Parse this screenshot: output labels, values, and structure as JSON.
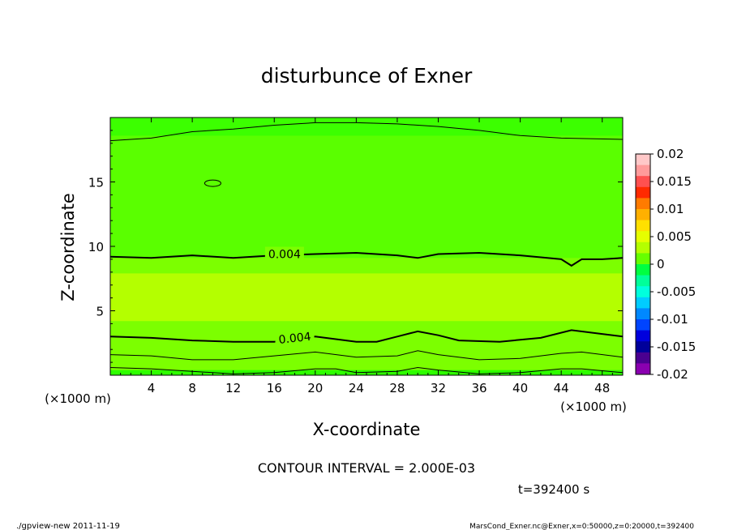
{
  "chart_data": {
    "type": "heatmap",
    "title": "disturbunce of Exner",
    "xlabel": "X-coordinate",
    "ylabel": "Z-coordinate",
    "x_unit_left": "(×1000 m)",
    "x_unit_right": "(×1000 m)",
    "xlim": [
      0,
      50
    ],
    "ylim": [
      0,
      20
    ],
    "x_ticks": [
      4,
      8,
      12,
      16,
      20,
      24,
      28,
      32,
      36,
      40,
      44,
      48
    ],
    "y_ticks": [
      5,
      10,
      15
    ],
    "colorbar": {
      "ticks": [
        "0.02",
        "0.015",
        "0.01",
        "0.005",
        "0",
        "-0.005",
        "-0.01",
        "-0.015",
        "-0.02"
      ],
      "levels": [
        0.02,
        0.015,
        0.01,
        0.005,
        0,
        -0.005,
        -0.01,
        -0.015,
        -0.02
      ],
      "colors_top_to_bottom": [
        "#ffc8c8",
        "#ff9b9b",
        "#ff5050",
        "#ff2a00",
        "#ff7b00",
        "#ffb000",
        "#ffe000",
        "#e6ff00",
        "#b4ff00",
        "#66ff00",
        "#00ff40",
        "#00ff99",
        "#00ffdd",
        "#00ccff",
        "#0088ff",
        "#0044ff",
        "#0000dd",
        "#00009a",
        "#4a0090",
        "#8a00b0"
      ]
    },
    "field_colors": {
      "top_band": "#3cff00",
      "upper": "#5aff00",
      "middle": "#b4ff00",
      "lower": "#7cff00",
      "bottom": "#2eff00"
    },
    "contour_labels": [
      {
        "text": "0.004",
        "x": 17,
        "z": 9.4
      },
      {
        "text": "0.004",
        "x": 18,
        "z": 2.9
      }
    ],
    "contours": [
      {
        "name": "0.004-upper",
        "width": 2,
        "points": [
          [
            0,
            9.2
          ],
          [
            4,
            9.1
          ],
          [
            8,
            9.3
          ],
          [
            12,
            9.1
          ],
          [
            16,
            9.3
          ],
          [
            20,
            9.4
          ],
          [
            24,
            9.5
          ],
          [
            28,
            9.3
          ],
          [
            30,
            9.1
          ],
          [
            32,
            9.4
          ],
          [
            36,
            9.5
          ],
          [
            40,
            9.3
          ],
          [
            44,
            9.0
          ],
          [
            45,
            8.5
          ],
          [
            46,
            9.0
          ],
          [
            48,
            9.0
          ],
          [
            50,
            9.1
          ]
        ]
      },
      {
        "name": "0.004-lower",
        "width": 2,
        "points": [
          [
            0,
            3.0
          ],
          [
            4,
            2.9
          ],
          [
            8,
            2.7
          ],
          [
            12,
            2.6
          ],
          [
            16,
            2.6
          ],
          [
            20,
            3.0
          ],
          [
            24,
            2.6
          ],
          [
            26,
            2.6
          ],
          [
            28,
            3.0
          ],
          [
            30,
            3.4
          ],
          [
            32,
            3.1
          ],
          [
            34,
            2.7
          ],
          [
            38,
            2.6
          ],
          [
            42,
            2.9
          ],
          [
            45,
            3.5
          ],
          [
            48,
            3.2
          ],
          [
            50,
            3.0
          ]
        ]
      },
      {
        "name": "0.002-lower",
        "width": 1,
        "points": [
          [
            0,
            1.6
          ],
          [
            4,
            1.5
          ],
          [
            8,
            1.2
          ],
          [
            12,
            1.2
          ],
          [
            16,
            1.5
          ],
          [
            20,
            1.8
          ],
          [
            24,
            1.4
          ],
          [
            28,
            1.5
          ],
          [
            30,
            1.9
          ],
          [
            32,
            1.6
          ],
          [
            36,
            1.2
          ],
          [
            40,
            1.3
          ],
          [
            44,
            1.7
          ],
          [
            46,
            1.8
          ],
          [
            50,
            1.4
          ]
        ]
      },
      {
        "name": "0-bottom",
        "width": 1,
        "points": [
          [
            0,
            0.6
          ],
          [
            4,
            0.5
          ],
          [
            8,
            0.3
          ],
          [
            12,
            0.1
          ],
          [
            16,
            0.2
          ],
          [
            20,
            0.5
          ],
          [
            22,
            0.5
          ],
          [
            24,
            0.2
          ],
          [
            28,
            0.3
          ],
          [
            30,
            0.6
          ],
          [
            32,
            0.4
          ],
          [
            36,
            0.1
          ],
          [
            40,
            0.2
          ],
          [
            44,
            0.5
          ],
          [
            46,
            0.5
          ],
          [
            50,
            0.2
          ]
        ]
      },
      {
        "name": "0.002-top",
        "width": 1,
        "points": [
          [
            0,
            18.2
          ],
          [
            4,
            18.4
          ],
          [
            8,
            18.9
          ],
          [
            12,
            19.1
          ],
          [
            16,
            19.4
          ],
          [
            20,
            19.6
          ],
          [
            24,
            19.6
          ],
          [
            28,
            19.5
          ],
          [
            32,
            19.3
          ],
          [
            36,
            19.0
          ],
          [
            40,
            18.6
          ],
          [
            44,
            18.4
          ],
          [
            50,
            18.3
          ]
        ]
      }
    ],
    "small_contour": {
      "x": 10,
      "z": 14.9
    }
  },
  "annotations": {
    "contour_interval": "CONTOUR INTERVAL = 2.000E-03",
    "time": "t=392400 s",
    "footer_left": "./gpview-new  2011-11-19",
    "footer_right": "MarsCond_Exner.nc@Exner,x=0:50000,z=0:20000,t=392400"
  }
}
